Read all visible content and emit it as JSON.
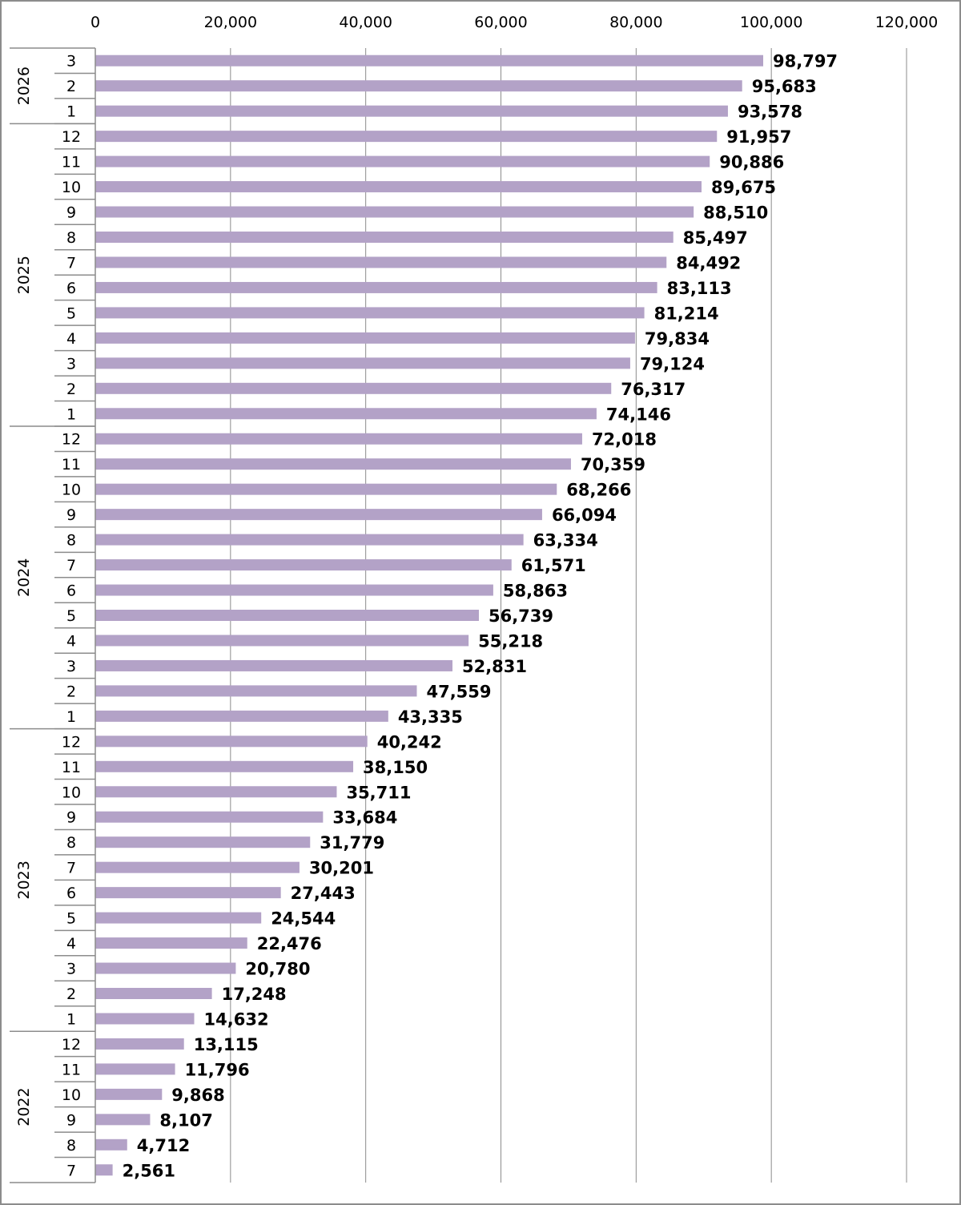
{
  "chart_data": {
    "type": "bar",
    "orientation": "horizontal",
    "title": "",
    "xlabel": "",
    "ylabel": "",
    "xlim": [
      0,
      120000
    ],
    "x_ticks": [
      "0",
      "20,000",
      "40,000",
      "60,000",
      "80,000",
      "100,000",
      "120,000"
    ],
    "x_tick_values": [
      0,
      20000,
      40000,
      60000,
      80000,
      100000,
      120000
    ],
    "x_axis_position": "top",
    "grid": "vertical",
    "legend": "none",
    "bar_color": "#b3a2c7",
    "series": [
      {
        "name": "",
        "points": [
          {
            "year": "2026",
            "month": "3",
            "value": 98797,
            "label": "98,797"
          },
          {
            "year": "2026",
            "month": "2",
            "value": 95683,
            "label": "95,683"
          },
          {
            "year": "2026",
            "month": "1",
            "value": 93578,
            "label": "93,578"
          },
          {
            "year": "2025",
            "month": "12",
            "value": 91957,
            "label": "91,957"
          },
          {
            "year": "2025",
            "month": "11",
            "value": 90886,
            "label": "90,886"
          },
          {
            "year": "2025",
            "month": "10",
            "value": 89675,
            "label": "89,675"
          },
          {
            "year": "2025",
            "month": "9",
            "value": 88510,
            "label": "88,510"
          },
          {
            "year": "2025",
            "month": "8",
            "value": 85497,
            "label": "85,497"
          },
          {
            "year": "2025",
            "month": "7",
            "value": 84492,
            "label": "84,492"
          },
          {
            "year": "2025",
            "month": "6",
            "value": 83113,
            "label": "83,113"
          },
          {
            "year": "2025",
            "month": "5",
            "value": 81214,
            "label": "81,214"
          },
          {
            "year": "2025",
            "month": "4",
            "value": 79834,
            "label": "79,834"
          },
          {
            "year": "2025",
            "month": "3",
            "value": 79124,
            "label": "79,124"
          },
          {
            "year": "2025",
            "month": "2",
            "value": 76317,
            "label": "76,317"
          },
          {
            "year": "2025",
            "month": "1",
            "value": 74146,
            "label": "74,146"
          },
          {
            "year": "2024",
            "month": "12",
            "value": 72018,
            "label": "72,018"
          },
          {
            "year": "2024",
            "month": "11",
            "value": 70359,
            "label": "70,359"
          },
          {
            "year": "2024",
            "month": "10",
            "value": 68266,
            "label": "68,266"
          },
          {
            "year": "2024",
            "month": "9",
            "value": 66094,
            "label": "66,094"
          },
          {
            "year": "2024",
            "month": "8",
            "value": 63334,
            "label": "63,334"
          },
          {
            "year": "2024",
            "month": "7",
            "value": 61571,
            "label": "61,571"
          },
          {
            "year": "2024",
            "month": "6",
            "value": 58863,
            "label": "58,863"
          },
          {
            "year": "2024",
            "month": "5",
            "value": 56739,
            "label": "56,739"
          },
          {
            "year": "2024",
            "month": "4",
            "value": 55218,
            "label": "55,218"
          },
          {
            "year": "2024",
            "month": "3",
            "value": 52831,
            "label": "52,831"
          },
          {
            "year": "2024",
            "month": "2",
            "value": 47559,
            "label": "47,559"
          },
          {
            "year": "2024",
            "month": "1",
            "value": 43335,
            "label": "43,335"
          },
          {
            "year": "2023",
            "month": "12",
            "value": 40242,
            "label": "40,242"
          },
          {
            "year": "2023",
            "month": "11",
            "value": 38150,
            "label": "38,150"
          },
          {
            "year": "2023",
            "month": "10",
            "value": 35711,
            "label": "35,711"
          },
          {
            "year": "2023",
            "month": "9",
            "value": 33684,
            "label": "33,684"
          },
          {
            "year": "2023",
            "month": "8",
            "value": 31779,
            "label": "31,779"
          },
          {
            "year": "2023",
            "month": "7",
            "value": 30201,
            "label": "30,201"
          },
          {
            "year": "2023",
            "month": "6",
            "value": 27443,
            "label": "27,443"
          },
          {
            "year": "2023",
            "month": "5",
            "value": 24544,
            "label": "24,544"
          },
          {
            "year": "2023",
            "month": "4",
            "value": 22476,
            "label": "22,476"
          },
          {
            "year": "2023",
            "month": "3",
            "value": 20780,
            "label": "20,780"
          },
          {
            "year": "2023",
            "month": "2",
            "value": 17248,
            "label": "17,248"
          },
          {
            "year": "2023",
            "month": "1",
            "value": 14632,
            "label": "14,632"
          },
          {
            "year": "2022",
            "month": "12",
            "value": 13115,
            "label": "13,115"
          },
          {
            "year": "2022",
            "month": "11",
            "value": 11796,
            "label": "11,796"
          },
          {
            "year": "2022",
            "month": "10",
            "value": 9868,
            "label": "9,868"
          },
          {
            "year": "2022",
            "month": "9",
            "value": 8107,
            "label": "8,107"
          },
          {
            "year": "2022",
            "month": "8",
            "value": 4712,
            "label": "4,712"
          },
          {
            "year": "2022",
            "month": "7",
            "value": 2561,
            "label": "2,561"
          }
        ]
      }
    ]
  }
}
